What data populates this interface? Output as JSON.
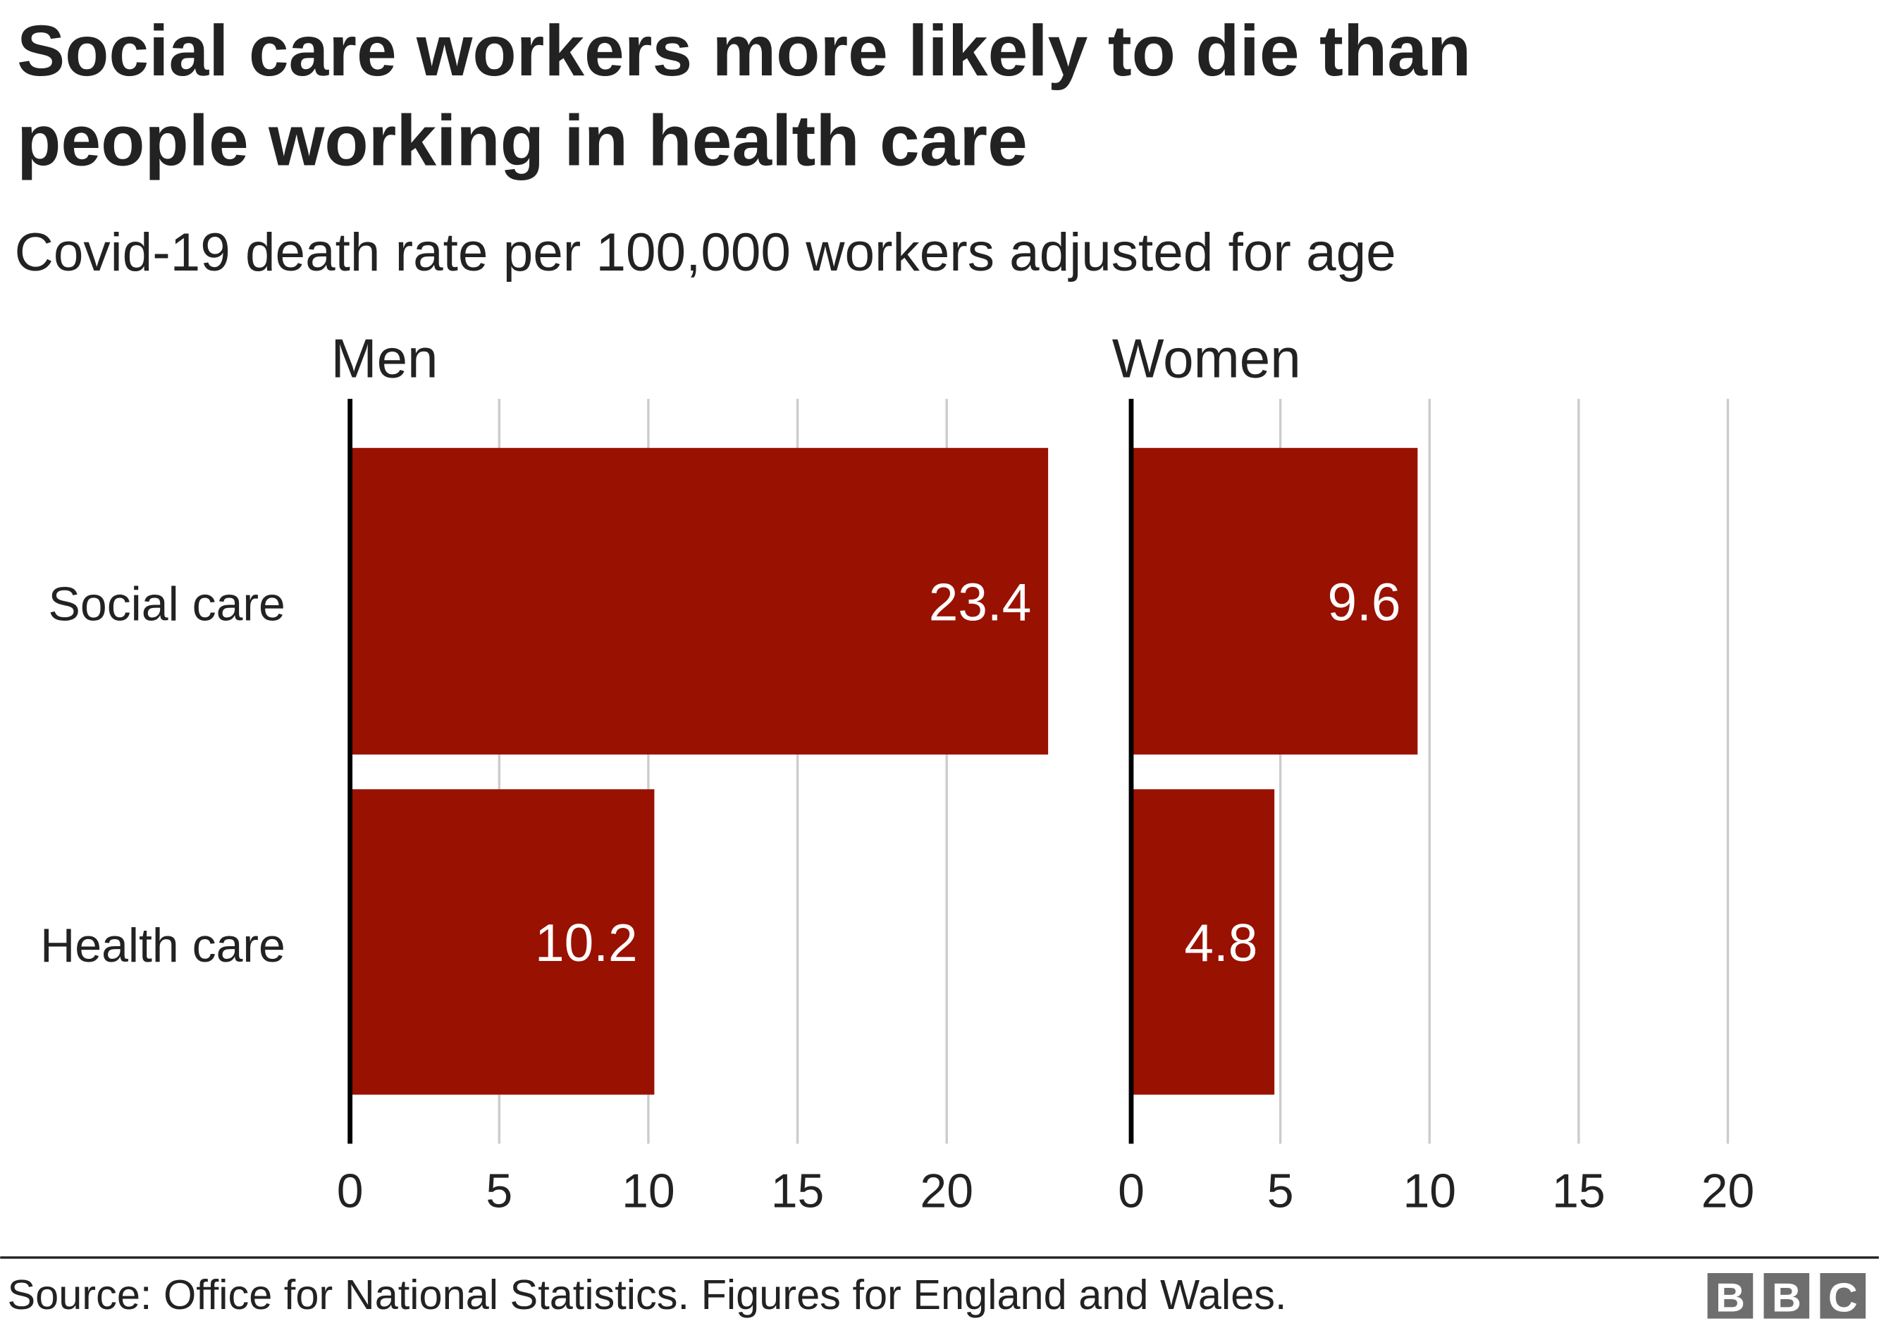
{
  "chart_data": {
    "type": "bar",
    "orientation": "horizontal",
    "title": "Social care workers more likely to die than people working in health care",
    "title_lines": [
      "Social care workers more likely to die than",
      "people working in health care"
    ],
    "subtitle": "Covid-19 death rate per 100,000 workers adjusted for age",
    "categories": [
      "Social care",
      "Health care"
    ],
    "panels": [
      {
        "name": "Men",
        "values": [
          23.4,
          10.2
        ],
        "labels": [
          "23.4",
          "10.2"
        ]
      },
      {
        "name": "Women",
        "values": [
          9.6,
          4.8
        ],
        "labels": [
          "9.6",
          "4.8"
        ]
      }
    ],
    "xlim": [
      0,
      24
    ],
    "xticks": [
      0,
      5,
      10,
      15,
      20
    ],
    "xtick_labels": [
      "0",
      "5",
      "10",
      "15",
      "20"
    ],
    "grid": true,
    "xlabel": "",
    "ylabel": ""
  },
  "footer": {
    "source": "Source: Office for National Statistics. Figures for England and Wales.",
    "logo": "BBC"
  },
  "colors": {
    "bar": "#991100",
    "grid": "#cccccc",
    "text": "#222222",
    "logo": "#6e6e6e"
  }
}
